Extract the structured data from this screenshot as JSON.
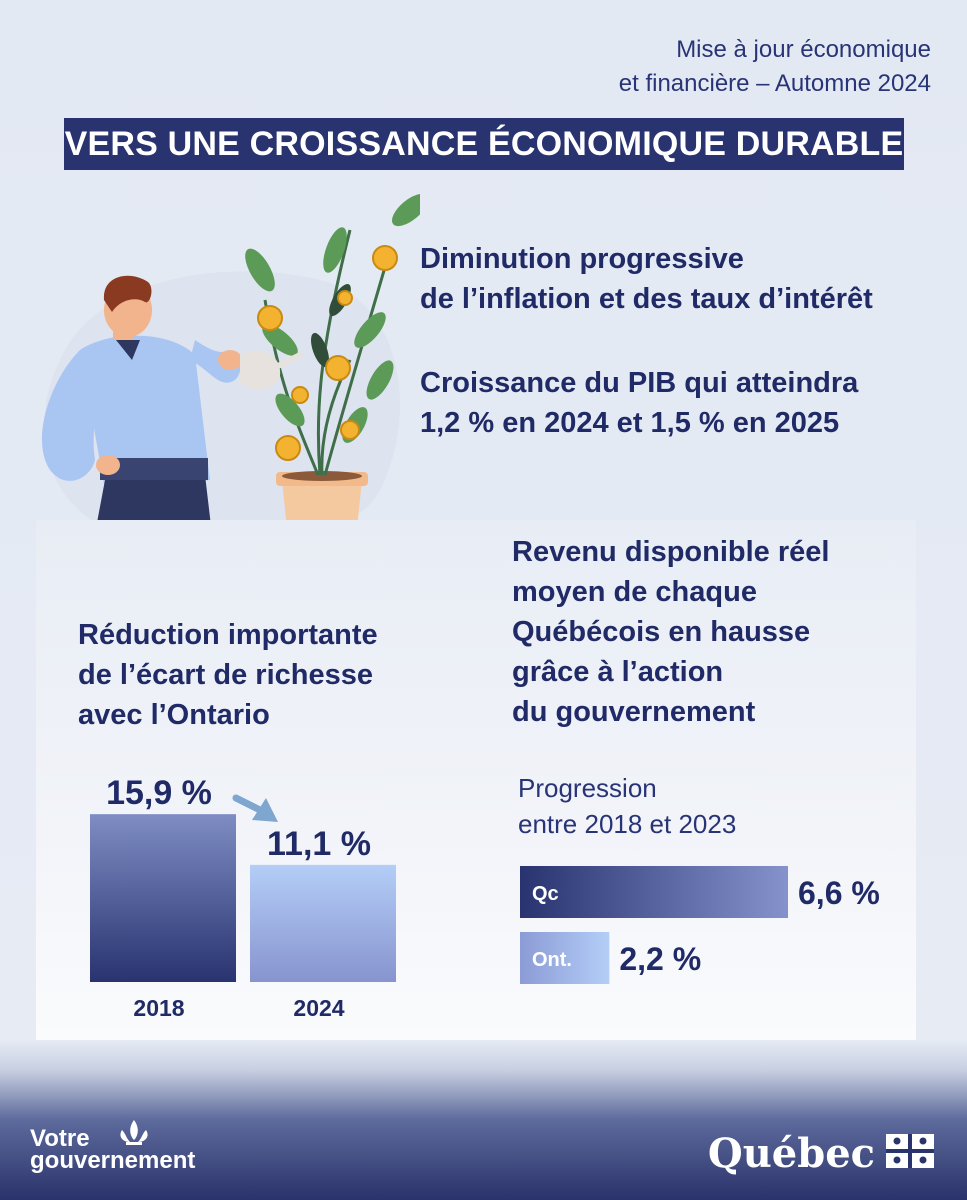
{
  "header": {
    "subtitle_line1": "Mise à jour économique",
    "subtitle_line2": "et financière – Automne 2024",
    "title": "VERS UNE CROISSANCE ÉCONOMIQUE DURABLE"
  },
  "points": {
    "inflation_line1": "Diminution progressive",
    "inflation_line2": "de l’inflation et des taux d’intérêt",
    "pib_line1": "Croissance du PIB qui atteindra",
    "pib_line2": "1,2 % en 2024 et 1,5 % en 2025"
  },
  "wealth_gap": {
    "heading_line1": "Réduction importante",
    "heading_line2": "de l’écart de richesse",
    "heading_line3": "avec l’Ontario"
  },
  "income": {
    "heading_line1": "Revenu disponible réel",
    "heading_line2": "moyen de chaque",
    "heading_line3": "Québécois en hausse",
    "heading_line4": "grâce à l’action",
    "heading_line5": "du gouvernement",
    "progression_line1": "Progression",
    "progression_line2": "entre 2018 et 2023"
  },
  "chart_data": [
    {
      "type": "bar",
      "categories": [
        "2018",
        "2024"
      ],
      "values": [
        15.9,
        11.1
      ],
      "value_labels": [
        "15,9 %",
        "11,1 %"
      ],
      "ylim": [
        0,
        18
      ],
      "colors": [
        "#7f8dc4",
        "#b4cef7"
      ]
    },
    {
      "type": "bar",
      "orientation": "horizontal",
      "categories": [
        "Qc",
        "Ont."
      ],
      "values": [
        6.6,
        2.2
      ],
      "value_labels": [
        "6,6 %",
        "2,2 %"
      ],
      "xlim": [
        0,
        6.6
      ],
      "colors": [
        "#2a336b",
        "#8b9bd6"
      ]
    }
  ],
  "footer": {
    "left_line1": "Votre",
    "left_line2": "gouvernement",
    "right": "Québec"
  }
}
